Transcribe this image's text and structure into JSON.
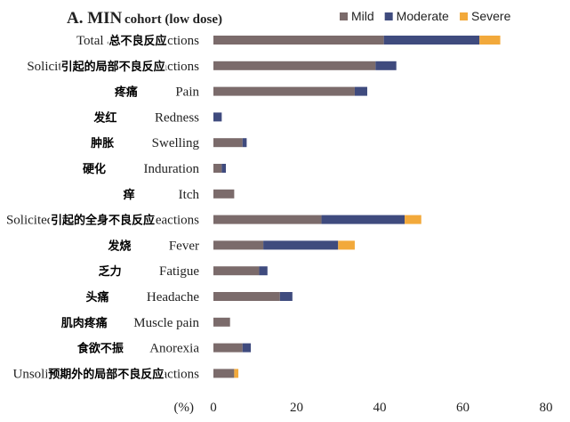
{
  "chart_data": {
    "type": "bar",
    "orientation": "horizontal",
    "stacked": true,
    "title": "A. MIN",
    "subtitle": "cohort (low dose)",
    "xlabel": "(%)",
    "xlim": [
      0,
      80
    ],
    "xticks": [
      "0",
      "20",
      "40",
      "60",
      "80"
    ],
    "grid": false,
    "legend_position": "top-right",
    "categories": [
      {
        "label": "Total adverse reactions",
        "overlay": "总不良反应"
      },
      {
        "label": "Solicited local adverse reactions",
        "overlay": "引起的局部不良反应"
      },
      {
        "label": "Pain",
        "overlay": "疼痛"
      },
      {
        "label": "Redness",
        "overlay": "发红"
      },
      {
        "label": "Swelling",
        "overlay": "肿胀"
      },
      {
        "label": "Induration",
        "overlay": "硬化"
      },
      {
        "label": "Itch",
        "overlay": "痒"
      },
      {
        "label": "Solicited systemic adverse reactions",
        "overlay": "引起的全身不良反应"
      },
      {
        "label": "Fever",
        "overlay": "发烧"
      },
      {
        "label": "Fatigue",
        "overlay": "乏力"
      },
      {
        "label": "Headache",
        "overlay": "头痛"
      },
      {
        "label": "Muscle pain",
        "overlay": "肌肉疼痛"
      },
      {
        "label": "Anorexia",
        "overlay": "食欲不振"
      },
      {
        "label": "Unsolicited local adverse reactions",
        "overlay": "预期外的局部不良反应"
      }
    ],
    "series": [
      {
        "name": "Mild",
        "color": "#7b6b6b",
        "values": [
          41,
          39,
          34,
          0,
          7,
          2,
          5,
          26,
          12,
          11,
          16,
          4,
          7,
          5
        ]
      },
      {
        "name": "Moderate",
        "color": "#3f4b7e",
        "values": [
          23,
          5,
          3,
          2,
          1,
          1,
          0,
          20,
          18,
          2,
          3,
          0,
          2,
          0
        ]
      },
      {
        "name": "Severe",
        "color": "#f2a93b",
        "values": [
          5,
          0,
          0,
          0,
          0,
          0,
          0,
          4,
          4,
          0,
          0,
          0,
          0,
          1
        ]
      }
    ]
  }
}
